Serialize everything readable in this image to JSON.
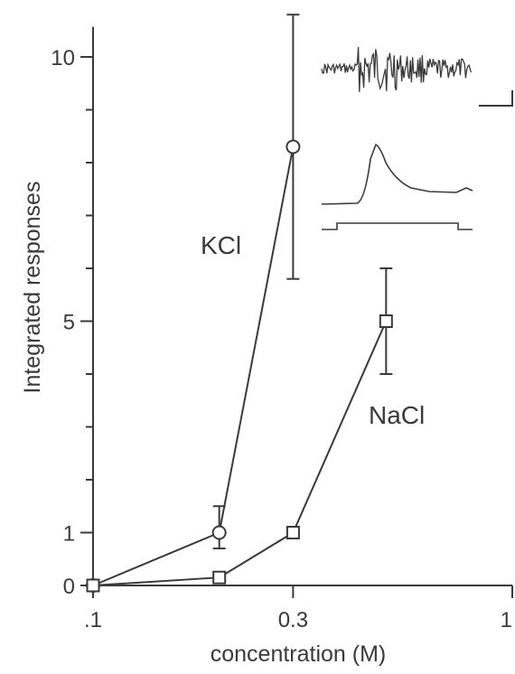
{
  "chart_data": {
    "type": "line",
    "xlabel": "concentration (M)",
    "ylabel": "Integrated responses",
    "x_scale": "log",
    "xlim": [
      0.1,
      1
    ],
    "ylim": [
      0,
      10.5
    ],
    "x_ticks": [
      0.1,
      0.3,
      1
    ],
    "x_tick_labels": [
      ".1",
      "0.3",
      "1"
    ],
    "y_ticks": [
      0,
      1,
      5,
      10
    ],
    "y_tick_labels": [
      "0",
      "1",
      "5",
      "10"
    ],
    "y_minor_ticks": [
      2,
      3,
      4,
      6,
      7,
      8,
      9
    ],
    "grid": false,
    "series": [
      {
        "name": "KCl",
        "marker": "circle",
        "x": [
          0.1,
          0.2,
          0.3
        ],
        "y": [
          0,
          1.0,
          8.3
        ],
        "err_low": [
          null,
          0.7,
          5.8
        ],
        "err_high": [
          null,
          1.5,
          10.8
        ]
      },
      {
        "name": "NaCl",
        "marker": "square",
        "x": [
          0.1,
          0.2,
          0.3,
          0.5
        ],
        "y": [
          0,
          0.15,
          1.0,
          5.0
        ],
        "err_low": [
          null,
          null,
          null,
          4.0
        ],
        "err_high": [
          null,
          null,
          null,
          6.0
        ]
      }
    ]
  }
}
